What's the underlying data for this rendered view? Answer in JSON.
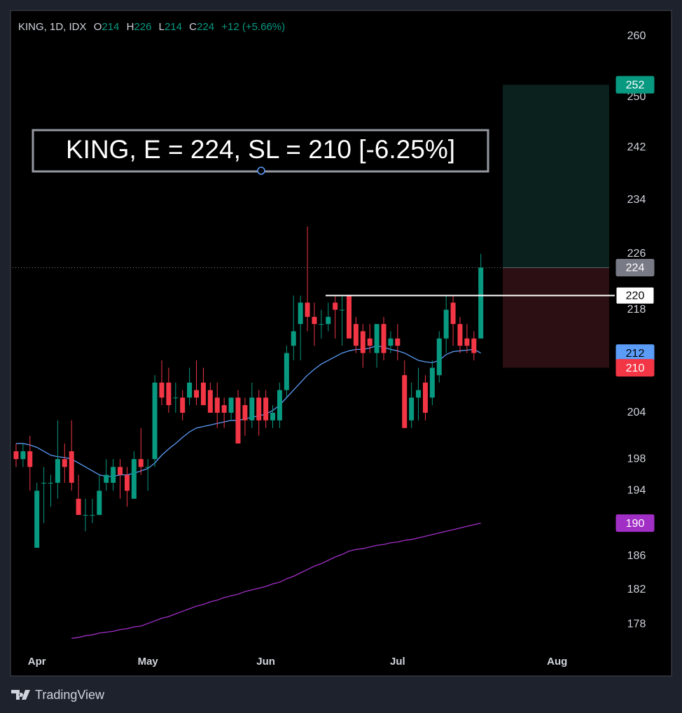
{
  "chart_data": {
    "type": "candlestick",
    "symbol": "KING, 1D, IDX",
    "ohlc_labels": [
      "O",
      "H",
      "L",
      "C"
    ],
    "change": "+12 (+5.66%)",
    "annotation": "KING, E = 224, SL = 210 [-6.25%]",
    "watermark": "TradingView",
    "log_scale": true,
    "grid": false,
    "up_color": "#089981",
    "down_color": "#f23645",
    "ylim": [
      175,
      264
    ],
    "yticks": [
      260,
      250,
      242,
      234,
      226,
      218,
      204,
      198,
      194,
      186,
      182,
      178
    ],
    "categories": [
      null,
      null,
      null,
      "Apr",
      null,
      null,
      null,
      null,
      null,
      null,
      null,
      null,
      null,
      null,
      null,
      null,
      null,
      null,
      null,
      "May",
      null,
      null,
      null,
      null,
      null,
      null,
      null,
      null,
      null,
      null,
      null,
      null,
      null,
      null,
      null,
      null,
      "Jun",
      null,
      null,
      null,
      null,
      null,
      null,
      null,
      null,
      null,
      null,
      null,
      null,
      null,
      null,
      null,
      null,
      null,
      null,
      "Jul",
      null,
      null,
      null,
      null,
      null,
      null,
      null,
      null,
      null,
      null,
      null,
      null,
      null,
      null,
      null,
      null,
      null,
      null,
      null,
      null,
      null,
      null,
      "Aug",
      null,
      null,
      null,
      null,
      null,
      null,
      null
    ],
    "open": [
      199,
      198,
      199,
      187,
      195,
      195,
      195,
      198,
      199,
      193,
      191,
      191,
      191,
      195,
      195,
      197,
      196,
      193,
      198,
      197,
      198,
      208,
      208,
      206,
      206,
      206,
      207,
      208,
      207,
      206,
      205,
      204,
      206,
      205,
      203,
      206,
      206,
      203,
      203,
      207,
      213,
      216,
      219,
      217,
      216,
      216,
      219,
      218,
      220,
      216,
      215,
      214,
      212,
      216,
      213,
      214,
      209,
      203,
      206,
      208,
      206,
      209,
      214,
      219,
      216,
      214,
      214,
      214,
      null,
      null,
      null,
      null,
      null,
      null,
      null,
      null,
      null,
      null,
      null,
      null,
      null,
      null,
      null,
      null,
      null,
      null
    ],
    "high": [
      200,
      200,
      201,
      195,
      197,
      196,
      203,
      200,
      203,
      196,
      193,
      193,
      196,
      198,
      198,
      198,
      197,
      199,
      202,
      198,
      209,
      211,
      210,
      208,
      207,
      210,
      211,
      210,
      208,
      208,
      206,
      206,
      207,
      206,
      208,
      207,
      207,
      205,
      208,
      213,
      220,
      220,
      230,
      219,
      218,
      219,
      220,
      220,
      220,
      217,
      216,
      216,
      216,
      217,
      215,
      216,
      211,
      208,
      210,
      209,
      211,
      215,
      220,
      220,
      217,
      216,
      215,
      226,
      null,
      null,
      null,
      null,
      null,
      null,
      null,
      null,
      null,
      null,
      null,
      null,
      null,
      null,
      null,
      null,
      null,
      null
    ],
    "low": [
      197,
      197,
      194,
      187,
      190,
      192,
      193,
      195,
      194,
      191,
      189,
      190,
      191,
      194,
      194,
      193,
      192,
      193,
      196,
      194,
      197,
      205,
      204,
      204,
      203,
      205,
      205,
      205,
      204,
      202,
      202,
      203,
      200,
      201,
      202,
      201,
      202,
      202,
      202,
      206,
      211,
      211,
      215,
      213,
      214,
      215,
      214,
      213,
      214,
      212,
      210,
      212,
      210,
      211,
      212,
      211,
      202,
      202,
      203,
      203,
      205,
      208,
      212,
      213,
      212,
      212,
      211,
      214,
      null,
      null,
      null,
      null,
      null,
      null,
      null,
      null,
      null,
      null,
      null,
      null,
      null,
      null,
      null,
      null,
      null,
      null
    ],
    "close": [
      198,
      199,
      197,
      194,
      195,
      195,
      198,
      197,
      195,
      191,
      191,
      191,
      194,
      196,
      197,
      196,
      194,
      198,
      197,
      197,
      208,
      206,
      205,
      206,
      204,
      208,
      206,
      205,
      204,
      204,
      204,
      206,
      200,
      203,
      206,
      203,
      203,
      204,
      207,
      212,
      215,
      219,
      217,
      216,
      216,
      217,
      218,
      218,
      214,
      213,
      212,
      213,
      216,
      212,
      214,
      213,
      202,
      206,
      207,
      204,
      210,
      214,
      218,
      216,
      213,
      213,
      212,
      224,
      null,
      null,
      null,
      null,
      null,
      null,
      null,
      null,
      null,
      null,
      null,
      null,
      null,
      null,
      null,
      null,
      null,
      null
    ],
    "lines": [
      {
        "color": "#5b9cf6",
        "values": [
          200,
          200,
          199.8,
          199.5,
          199,
          198.5,
          198.3,
          198.2,
          198,
          197.5,
          197,
          196.5,
          196,
          195.8,
          195.8,
          196,
          196,
          196.2,
          196.5,
          196.8,
          197.5,
          198.5,
          199.3,
          200,
          200.8,
          201.5,
          202,
          202.2,
          202.4,
          202.6,
          202.8,
          203,
          203,
          203.2,
          203.4,
          203.6,
          203.8,
          204.3,
          205,
          206,
          207,
          208,
          209,
          209.8,
          210.5,
          211,
          211.5,
          212,
          212.3,
          212.5,
          212.5,
          212.7,
          213,
          212.8,
          212.5,
          212.3,
          212,
          211.5,
          211,
          210.8,
          210.7,
          211,
          211.8,
          212.2,
          212.3,
          212.4,
          212.5,
          212,
          null,
          null,
          null,
          null,
          null,
          null,
          null,
          null,
          null,
          null,
          null,
          null,
          null,
          null,
          null,
          null,
          null,
          null
        ]
      },
      {
        "color": "#a12fc6",
        "values": [
          null,
          null,
          null,
          null,
          null,
          null,
          null,
          null,
          176.4,
          176.5,
          176.7,
          176.8,
          177,
          177.1,
          177.2,
          177.4,
          177.5,
          177.7,
          177.8,
          178.1,
          178.4,
          178.7,
          178.9,
          179.2,
          179.5,
          179.8,
          180.1,
          180.3,
          180.6,
          180.8,
          181.1,
          181.3,
          181.5,
          181.8,
          182,
          182.2,
          182.4,
          182.7,
          182.9,
          183.3,
          183.6,
          184,
          184.4,
          184.8,
          185.1,
          185.5,
          185.9,
          186.2,
          186.6,
          186.8,
          186.9,
          187.1,
          187.3,
          187.4,
          187.6,
          187.7,
          187.9,
          188,
          188.2,
          188.4,
          188.6,
          188.8,
          189,
          189.2,
          189.4,
          189.6,
          189.8,
          190,
          null,
          null,
          null,
          null,
          null,
          null,
          null,
          null,
          null,
          null,
          null,
          null,
          null,
          null,
          null,
          null,
          null,
          null
        ]
      }
    ],
    "hline": {
      "value": 220,
      "color": "#ffffff"
    },
    "position": {
      "entry": 224,
      "target": 252,
      "stop": 210,
      "target_color": "#089981",
      "stop_color": "#f23645",
      "target_fill": "#0a211d",
      "stop_fill": "#2c0f12"
    },
    "last_price_color": "#787b86"
  }
}
